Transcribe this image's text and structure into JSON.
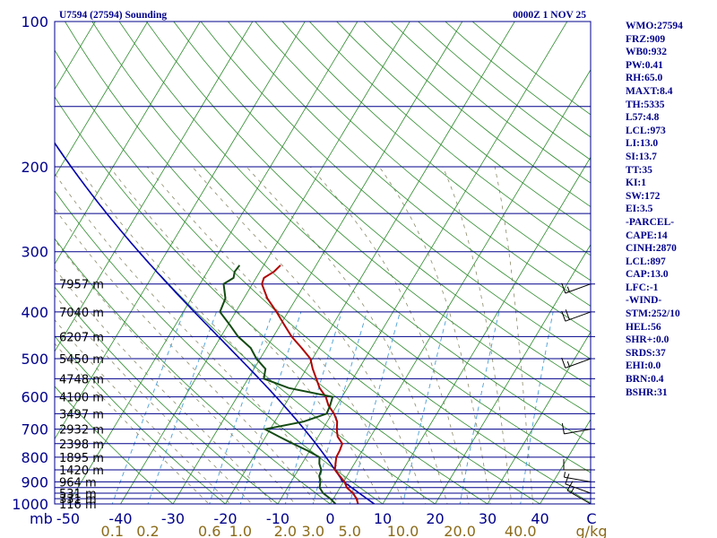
{
  "header": {
    "station": "U7594 (27594) Sounding",
    "time": "0000Z  1 NOV 25"
  },
  "indices": [
    "WMO:27594",
    "FRZ:909",
    "WB0:932",
    "PW:0.41",
    "RH:65.0",
    "MAXT:8.4",
    "TH:5335",
    "L57:4.8",
    "LCL:973",
    "LI:13.0",
    "SI:13.7",
    "TT:35",
    "KI:1",
    "SW:172",
    "EI:3.5",
    "-PARCEL-",
    "CAPE:14",
    "CINH:2870",
    "LCL:897",
    "CAP:13.0",
    "LFC:-1",
    "-WIND-",
    "STM:252/10",
    "HEL:56",
    "SHR+:0.0",
    "SRDS:37",
    "EHI:0.0",
    "BRN:0.4",
    "BSHR:31"
  ],
  "colors": {
    "axis_text": "#00008b",
    "isobar": "#00008b",
    "isotherm": "#2e8b2e",
    "dry_adiabat": "#2e8b2e",
    "moist_adiabat": "#8b8b6b",
    "mixing_ratio": "#4a9fd6",
    "temperature": "#b00000",
    "dewpoint": "#134a13",
    "parcel": "#0000b0",
    "wind": "#000000"
  },
  "chart_data": {
    "type": "skew-t log-p",
    "title": "U7594 (27594) Sounding",
    "pressure_axis_label": "mb",
    "pressure_ticks": [
      100,
      200,
      300,
      400,
      500,
      600,
      700,
      800,
      900,
      1000
    ],
    "isobars": [
      100,
      150,
      200,
      250,
      300,
      350,
      400,
      450,
      500,
      550,
      600,
      650,
      700,
      750,
      800,
      850,
      900,
      925,
      950,
      975,
      1000
    ],
    "temperature_ticks": [
      -50,
      -40,
      -30,
      -20,
      -10,
      0,
      10,
      20,
      30,
      40
    ],
    "temperature_unit": "C",
    "mixing_ratio_unit": "g/kg",
    "mixing_ratio_labels": [
      "0.1",
      "0.2",
      "0.6",
      "1.0",
      "2.0",
      "3.0",
      "5.0",
      "10.0",
      "20.0",
      "40.0"
    ],
    "mixing_ratio_values": [
      0.1,
      0.2,
      0.6,
      1.0,
      2.0,
      3.0,
      5.0,
      10.0,
      20.0,
      40.0
    ],
    "height_labels": [
      {
        "p": 1000,
        "label": "116 m"
      },
      {
        "p": 975,
        "label": "331 m"
      },
      {
        "p": 950,
        "label": "531 m"
      },
      {
        "p": 900,
        "label": "964 m"
      },
      {
        "p": 850,
        "label": "1420 m"
      },
      {
        "p": 800,
        "label": "1895 m"
      },
      {
        "p": 750,
        "label": "2398 m"
      },
      {
        "p": 700,
        "label": "2932 m"
      },
      {
        "p": 650,
        "label": "3497 m"
      },
      {
        "p": 600,
        "label": "4100 m"
      },
      {
        "p": 550,
        "label": "4748 m"
      },
      {
        "p": 500,
        "label": "5450 m"
      },
      {
        "p": 450,
        "label": "6207 m"
      },
      {
        "p": 400,
        "label": "7040 m"
      },
      {
        "p": 350,
        "label": "7957 m"
      }
    ],
    "temperature_profile": [
      {
        "p": 1000,
        "t": 5.3
      },
      {
        "p": 975,
        "t": 4.4
      },
      {
        "p": 950,
        "t": 3.1
      },
      {
        "p": 925,
        "t": 1.3
      },
      {
        "p": 900,
        "t": 0.2
      },
      {
        "p": 875,
        "t": -1.4
      },
      {
        "p": 850,
        "t": -3.0
      },
      {
        "p": 825,
        "t": -3.6
      },
      {
        "p": 800,
        "t": -4.2
      },
      {
        "p": 775,
        "t": -4.3
      },
      {
        "p": 750,
        "t": -4.6
      },
      {
        "p": 725,
        "t": -6.3
      },
      {
        "p": 700,
        "t": -7.3
      },
      {
        "p": 675,
        "t": -8.1
      },
      {
        "p": 650,
        "t": -9.6
      },
      {
        "p": 625,
        "t": -11.6
      },
      {
        "p": 600,
        "t": -13.1
      },
      {
        "p": 575,
        "t": -15.3
      },
      {
        "p": 550,
        "t": -17.0
      },
      {
        "p": 525,
        "t": -18.8
      },
      {
        "p": 500,
        "t": -20.4
      },
      {
        "p": 475,
        "t": -23.3
      },
      {
        "p": 450,
        "t": -26.5
      },
      {
        "p": 425,
        "t": -29.3
      },
      {
        "p": 400,
        "t": -32.2
      },
      {
        "p": 375,
        "t": -35.5
      },
      {
        "p": 350,
        "t": -38.2
      },
      {
        "p": 340,
        "t": -38.5
      },
      {
        "p": 330,
        "t": -37.3
      },
      {
        "p": 320,
        "t": -36.8
      }
    ],
    "dewpoint_profile": [
      {
        "p": 1000,
        "t": 1.0
      },
      {
        "p": 975,
        "t": -0.6
      },
      {
        "p": 950,
        "t": -2.6
      },
      {
        "p": 925,
        "t": -3.9
      },
      {
        "p": 900,
        "t": -4.4
      },
      {
        "p": 875,
        "t": -5.3
      },
      {
        "p": 850,
        "t": -5.6
      },
      {
        "p": 825,
        "t": -6.7
      },
      {
        "p": 800,
        "t": -7.4
      },
      {
        "p": 775,
        "t": -10.5
      },
      {
        "p": 750,
        "t": -14.0
      },
      {
        "p": 725,
        "t": -17.5
      },
      {
        "p": 700,
        "t": -21.0
      },
      {
        "p": 675,
        "t": -14.5
      },
      {
        "p": 650,
        "t": -11.0
      },
      {
        "p": 625,
        "t": -11.3
      },
      {
        "p": 600,
        "t": -11.8
      },
      {
        "p": 575,
        "t": -21.2
      },
      {
        "p": 550,
        "t": -27.0
      },
      {
        "p": 525,
        "t": -27.8
      },
      {
        "p": 500,
        "t": -30.7
      },
      {
        "p": 475,
        "t": -33.0
      },
      {
        "p": 450,
        "t": -36.7
      },
      {
        "p": 425,
        "t": -39.7
      },
      {
        "p": 400,
        "t": -43.0
      },
      {
        "p": 375,
        "t": -43.5
      },
      {
        "p": 350,
        "t": -45.5
      },
      {
        "p": 340,
        "t": -44.3
      },
      {
        "p": 330,
        "t": -44.8
      },
      {
        "p": 320,
        "t": -44.6
      }
    ],
    "parcel_start": {
      "p": 1000,
      "t": 8.4
    },
    "parcel_top_pressure": 130,
    "wind_profile": [
      {
        "p": 1000,
        "dir": 300,
        "spd": 15
      },
      {
        "p": 950,
        "dir": 290,
        "spd": 10
      },
      {
        "p": 900,
        "dir": 280,
        "spd": 5
      },
      {
        "p": 850,
        "dir": 270,
        "spd": 10
      },
      {
        "p": 700,
        "dir": 260,
        "spd": 10
      },
      {
        "p": 500,
        "dir": 250,
        "spd": 15
      },
      {
        "p": 400,
        "dir": 250,
        "spd": 20
      },
      {
        "p": 350,
        "dir": 250,
        "spd": 15
      }
    ]
  }
}
